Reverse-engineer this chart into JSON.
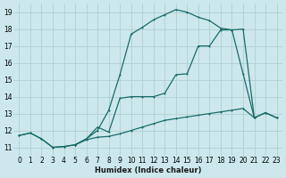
{
  "xlabel": "Humidex (Indice chaleur)",
  "background_color": "#cce8ec",
  "grid_color": "#b0d0d4",
  "line_color": "#1a6b6b",
  "xlim": [
    -0.5,
    23.5
  ],
  "ylim": [
    10.5,
    19.5
  ],
  "xticks": [
    0,
    1,
    2,
    3,
    4,
    5,
    6,
    7,
    8,
    9,
    10,
    11,
    12,
    13,
    14,
    15,
    16,
    17,
    18,
    19,
    20,
    21,
    22,
    23
  ],
  "yticks": [
    11,
    12,
    13,
    14,
    15,
    16,
    17,
    18,
    19
  ],
  "line1_x": [
    0,
    1,
    2,
    3,
    4,
    5,
    6,
    7,
    8,
    9,
    10,
    11,
    12,
    13,
    14,
    15,
    16,
    17,
    18,
    19,
    20,
    21,
    22,
    23
  ],
  "line1_y": [
    11.7,
    11.85,
    11.5,
    11.0,
    11.05,
    11.15,
    11.45,
    11.6,
    11.65,
    11.8,
    12.0,
    12.2,
    12.4,
    12.6,
    12.7,
    12.8,
    12.9,
    13.0,
    13.1,
    13.2,
    13.3,
    12.75,
    13.05,
    12.75
  ],
  "line2_x": [
    0,
    1,
    2,
    3,
    4,
    5,
    6,
    7,
    8,
    9,
    10,
    11,
    12,
    13,
    14,
    15,
    16,
    17,
    18,
    19,
    20,
    21,
    22,
    23
  ],
  "line2_y": [
    11.7,
    11.85,
    11.5,
    11.0,
    11.05,
    11.15,
    11.5,
    12.0,
    13.2,
    15.3,
    17.7,
    18.1,
    18.55,
    18.85,
    19.15,
    19.0,
    18.7,
    18.5,
    18.05,
    17.95,
    18.0,
    12.75,
    13.05,
    12.75
  ],
  "line3_x": [
    5,
    6,
    7,
    8,
    9,
    10,
    11,
    12,
    13,
    14,
    15,
    16,
    17,
    18,
    19,
    20,
    21
  ],
  "line3_y": [
    11.15,
    11.5,
    12.2,
    11.9,
    13.9,
    14.0,
    14.0,
    14.0,
    14.2,
    15.3,
    15.35,
    17.0,
    17.0,
    17.95,
    17.95,
    15.35,
    12.75
  ]
}
